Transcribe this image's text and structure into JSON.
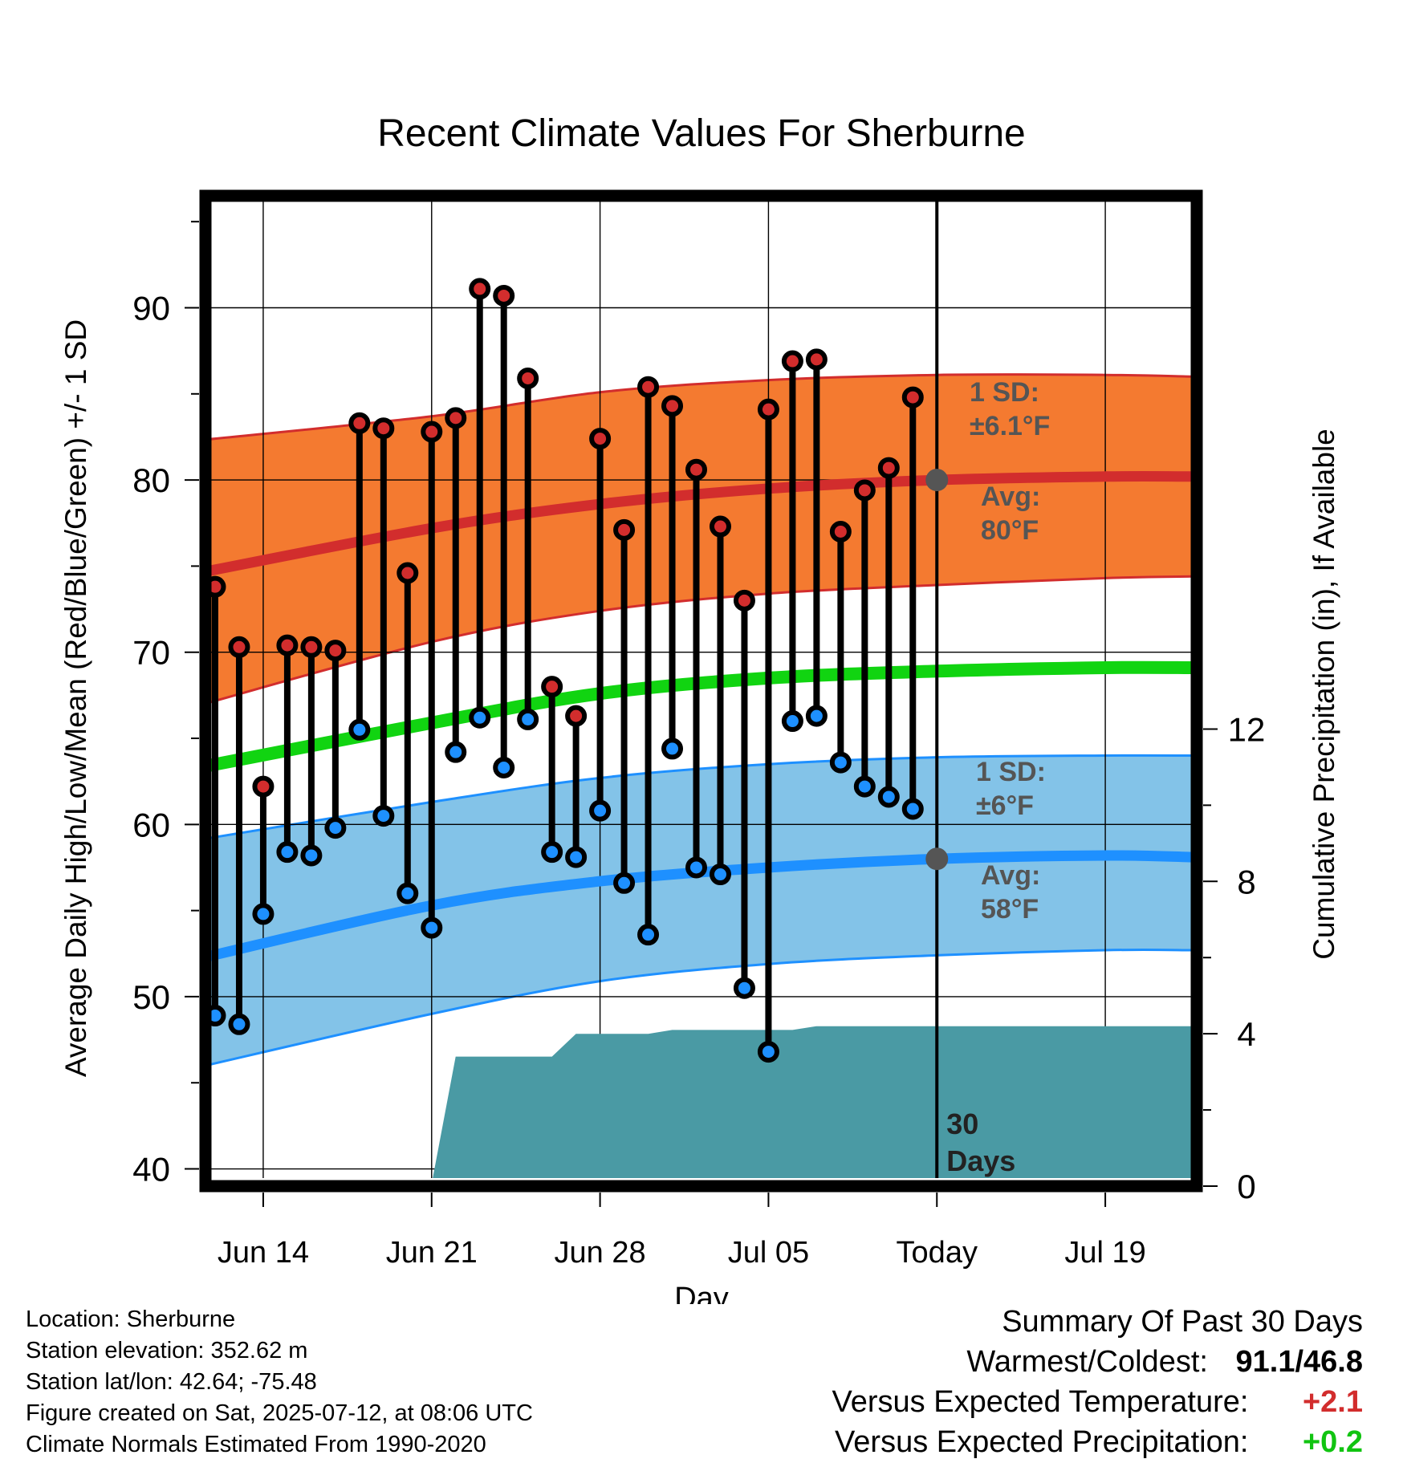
{
  "chart_data": {
    "type": "line",
    "title": "Recent Climate Values For Sherburne",
    "xlabel": "Day",
    "ylabel": "Average Daily High/Low/Mean (Red/Blue/Green) +/- 1 SD",
    "ylabel_right": "Cumulative Precipitation (in), If Available",
    "xlim": [
      -2.4,
      38.8
    ],
    "ylim": [
      39,
      96.5
    ],
    "ylim_right": [
      0,
      26
    ],
    "x_ticks": [
      {
        "x": 0,
        "label": "Jun 14"
      },
      {
        "x": 7,
        "label": "Jun 21"
      },
      {
        "x": 14,
        "label": "Jun 28"
      },
      {
        "x": 21,
        "label": "Jul 05"
      },
      {
        "x": 28,
        "label": "Today"
      },
      {
        "x": 35,
        "label": "Jul 19"
      }
    ],
    "y_ticks": [
      40,
      50,
      60,
      70,
      80,
      90
    ],
    "y_ticks_right": [
      0,
      4,
      8,
      12
    ],
    "grid": true,
    "today_x": 28,
    "today_label": [
      "30",
      "Days"
    ],
    "days_x": [
      -2,
      -1,
      0,
      1,
      2,
      3,
      4,
      5,
      6,
      7,
      8,
      9,
      10,
      11,
      12,
      13,
      14,
      15,
      16,
      17,
      18,
      19,
      20,
      21,
      22,
      23,
      24,
      25,
      26,
      27,
      28
    ],
    "highs": [
      73.8,
      70.3,
      62.2,
      70.4,
      70.3,
      70.1,
      83.3,
      83.0,
      74.6,
      82.8,
      83.6,
      91.1,
      90.7,
      85.9,
      68.0,
      66.3,
      82.4,
      77.1,
      85.4,
      84.3,
      80.6,
      77.3,
      73.0,
      84.1,
      86.9,
      87.0,
      77.0,
      79.4,
      80.7,
      84.8,
      null
    ],
    "lows": [
      48.9,
      48.4,
      54.8,
      58.4,
      58.2,
      59.8,
      65.5,
      60.5,
      56.0,
      54.0,
      64.2,
      66.2,
      63.3,
      66.1,
      58.4,
      58.1,
      60.8,
      56.6,
      53.6,
      64.4,
      57.5,
      57.1,
      50.5,
      46.8,
      66.0,
      66.3,
      63.6,
      62.2,
      61.6,
      60.9,
      null
    ],
    "normals": {
      "x": [
        -2.7,
        7,
        14,
        21,
        28,
        35,
        38.6
      ],
      "high_mean": [
        74.6,
        77.2,
        78.6,
        79.5,
        80.0,
        80.2,
        80.2
      ],
      "high_upper": [
        82.3,
        83.7,
        85.1,
        85.8,
        86.1,
        86.1,
        86.0
      ],
      "high_lower": [
        66.9,
        70.6,
        72.4,
        73.4,
        73.9,
        74.3,
        74.4
      ],
      "mean": [
        63.3,
        65.9,
        67.6,
        68.5,
        68.9,
        69.1,
        69.1
      ],
      "low_mean": [
        52.2,
        55.3,
        56.7,
        57.5,
        58.0,
        58.2,
        58.1
      ],
      "low_upper": [
        59.1,
        61.3,
        62.7,
        63.5,
        63.9,
        64.0,
        64.0
      ],
      "low_lower": [
        45.9,
        49.0,
        50.9,
        51.9,
        52.4,
        52.7,
        52.7
      ]
    },
    "precipitation": {
      "x": [
        -2.7,
        6.9,
        7.0,
        8.0,
        11.0,
        12.0,
        13.0,
        14.0,
        15.0,
        16.0,
        17.0,
        18.0,
        19.0,
        20.0,
        21.0,
        22.0,
        23.0,
        24.0,
        38.6
      ],
      "values": [
        0.0,
        0.06,
        0.06,
        3.4,
        3.4,
        3.4,
        4.0,
        4.0,
        4.0,
        4.0,
        4.1,
        4.1,
        4.1,
        4.1,
        4.1,
        4.1,
        4.2,
        4.2,
        4.2
      ]
    },
    "annotations": [
      {
        "id": "high_sd",
        "lines": [
          "1 SD:",
          "±6.1°F"
        ]
      },
      {
        "id": "high_avg",
        "lines": [
          "Avg:",
          "80°F"
        ],
        "value": 80
      },
      {
        "id": "low_sd",
        "lines": [
          "1 SD:",
          "±6°F"
        ]
      },
      {
        "id": "low_avg",
        "lines": [
          "Avg:",
          "58°F"
        ],
        "value": 58
      }
    ],
    "colors": {
      "high_band": "#f47a30",
      "high_line": "#d22d2d",
      "low_band": "#83c3e8",
      "low_line": "#1e90ff",
      "mean_line": "#11d411",
      "precip": "#4a9aa4",
      "high_dot": "#d22d2d",
      "low_dot": "#1e90ff",
      "annotation": "#555555",
      "avg_marker": "#555555"
    }
  },
  "info": {
    "location": "Location: Sherburne",
    "elevation": "Station elevation: 352.62 m",
    "latlon": "Station lat/lon: 42.64; -75.48",
    "created": "Figure created on Sat, 2025-07-12, at 08:06 UTC",
    "normals": "Climate Normals Estimated From 1990-2020"
  },
  "summary": {
    "title": "Summary Of Past 30 Days",
    "warmest_label": "Warmest/Coldest:",
    "warmest_value": "91.1/46.8",
    "temp_label": "Versus Expected Temperature:",
    "temp_value": "+2.1",
    "temp_color": "#d22d2d",
    "precip_label": "Versus Expected Precipitation:",
    "precip_value": "+0.2",
    "precip_color": "#11c411"
  }
}
